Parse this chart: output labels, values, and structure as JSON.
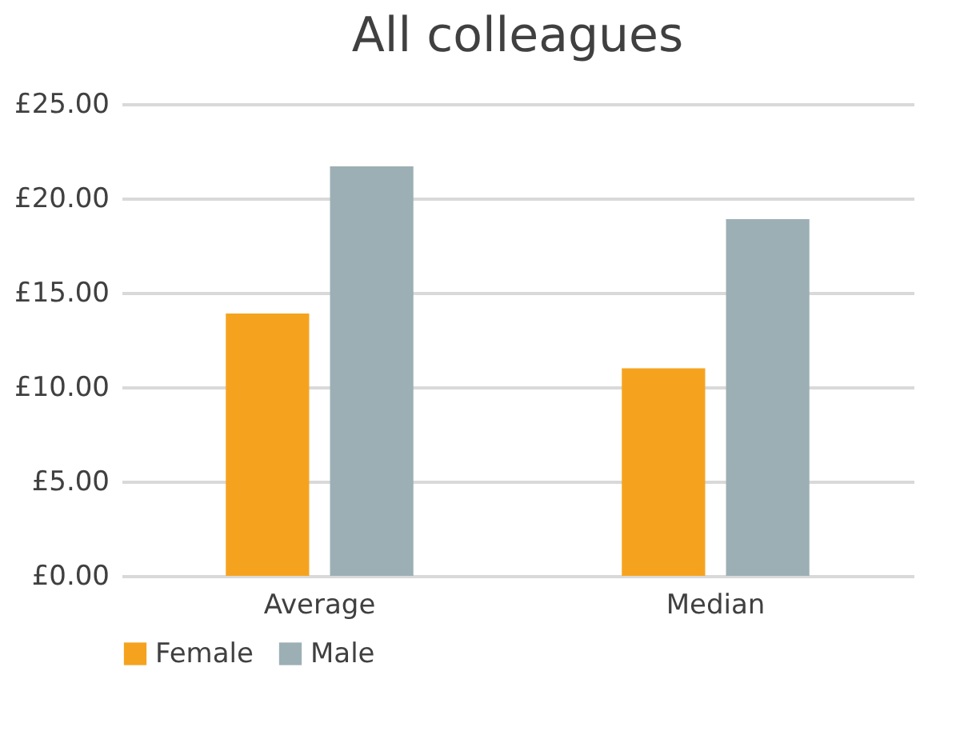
{
  "chart_data": {
    "type": "bar",
    "title": "All colleagues",
    "categories": [
      "Average",
      "Median"
    ],
    "series": [
      {
        "name": "Female",
        "color": "#f5a31f",
        "values": [
          13.9,
          11.0
        ]
      },
      {
        "name": "Male",
        "color": "#9cafb4",
        "values": [
          21.7,
          18.9
        ]
      }
    ],
    "ylim": [
      0,
      25
    ],
    "yticks": [
      {
        "value": 0,
        "label": "£0.00"
      },
      {
        "value": 5,
        "label": "£5.00"
      },
      {
        "value": 10,
        "label": "£10.00"
      },
      {
        "value": 15,
        "label": "£15.00"
      },
      {
        "value": 20,
        "label": "£20.00"
      },
      {
        "value": 25,
        "label": "£25.00"
      }
    ],
    "grid": "y",
    "legend": "bottom"
  }
}
